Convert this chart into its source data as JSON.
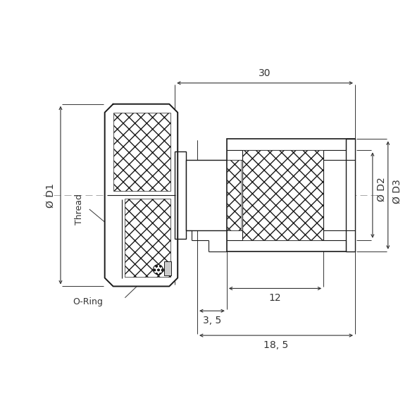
{
  "bg_color": "#ffffff",
  "line_color": "#1a1a1a",
  "dim_color": "#333333",
  "annotations": {
    "dim_18_5": "18, 5",
    "dim_3_5": "3, 5",
    "dim_12": "12",
    "dim_30": "30",
    "label_D1": "Ø D1",
    "label_D2": "Ø D2",
    "label_D3": "Ø D3",
    "label_thread": "Thread",
    "label_oring": "O-Ring"
  },
  "figsize": [
    5.82,
    5.82
  ],
  "dpi": 100
}
